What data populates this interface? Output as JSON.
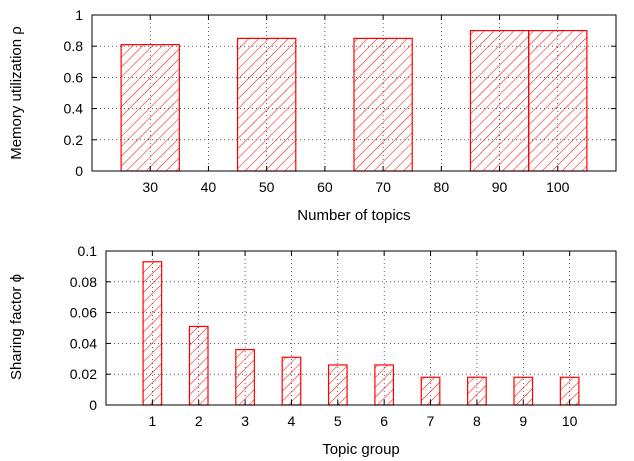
{
  "chart_data": [
    {
      "type": "bar",
      "xlabel": "Number of topics",
      "ylabel": "Memory utilization ρ",
      "xlim": [
        20,
        110
      ],
      "ylim": [
        0,
        1
      ],
      "xticks": [
        "30",
        "40",
        "50",
        "60",
        "70",
        "80",
        "90",
        "100"
      ],
      "yticks": [
        "0",
        "0.2",
        "0.4",
        "0.6",
        "0.8",
        "1"
      ],
      "x": [
        30,
        50,
        70,
        90,
        100
      ],
      "values": [
        0.81,
        0.85,
        0.85,
        0.9,
        0.9
      ],
      "bar_width": 10,
      "grid": true,
      "color": "#ff0000",
      "pattern": "diagonal-hatch"
    },
    {
      "type": "bar",
      "xlabel": "Topic group",
      "ylabel": "Sharing factor ϕ",
      "xlim": [
        0,
        11
      ],
      "ylim": [
        0,
        0.1
      ],
      "xticks": [
        "1",
        "2",
        "3",
        "4",
        "5",
        "6",
        "7",
        "8",
        "9",
        "10"
      ],
      "yticks": [
        "0",
        "0.02",
        "0.04",
        "0.06",
        "0.08",
        "0.1"
      ],
      "x": [
        1,
        2,
        3,
        4,
        5,
        6,
        7,
        8,
        9,
        10
      ],
      "values": [
        0.093,
        0.051,
        0.036,
        0.031,
        0.026,
        0.026,
        0.018,
        0.018,
        0.018,
        0.018
      ],
      "bar_width": 0.4,
      "grid": true,
      "color": "#ff0000",
      "pattern": "diagonal-hatch"
    }
  ]
}
